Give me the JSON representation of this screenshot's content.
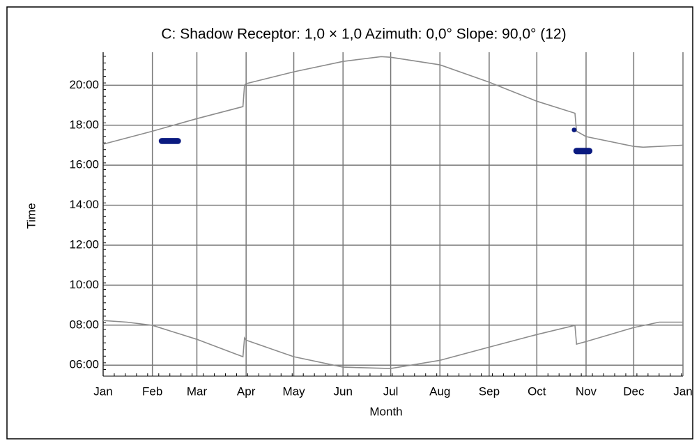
{
  "chart_data": {
    "type": "line",
    "title": "C: Shadow Receptor: 1,0 × 1,0  Azimuth: 0,0°  Slope: 90,0° (12)",
    "x_label": "Month",
    "y_label": "Time",
    "xlim": [
      0,
      365
    ],
    "xticks": [
      {
        "value": 0,
        "label": "Jan"
      },
      {
        "value": 31,
        "label": "Feb"
      },
      {
        "value": 59,
        "label": "Mar"
      },
      {
        "value": 90,
        "label": "Apr"
      },
      {
        "value": 120,
        "label": "May"
      },
      {
        "value": 151,
        "label": "Jun"
      },
      {
        "value": 181,
        "label": "Jul"
      },
      {
        "value": 212,
        "label": "Aug"
      },
      {
        "value": 243,
        "label": "Sep"
      },
      {
        "value": 273,
        "label": "Oct"
      },
      {
        "value": 304,
        "label": "Nov"
      },
      {
        "value": 334,
        "label": "Dec"
      },
      {
        "value": 365,
        "label": "Jan"
      }
    ],
    "ylim": [
      5.45,
      21.65
    ],
    "yticks": [
      {
        "value": 6,
        "label": "06:00"
      },
      {
        "value": 8,
        "label": "08:00"
      },
      {
        "value": 10,
        "label": "10:00"
      },
      {
        "value": 12,
        "label": "12:00"
      },
      {
        "value": 14,
        "label": "14:00"
      },
      {
        "value": 16,
        "label": "16:00"
      },
      {
        "value": 18,
        "label": "18:00"
      },
      {
        "value": 20,
        "label": "20:00"
      }
    ],
    "grid": true,
    "series": [
      {
        "color": "#8c8c8c",
        "x": [
          0,
          31,
          59,
          88,
          89,
          90,
          120,
          151,
          175,
          181,
          212,
          243,
          273,
          297,
          298,
          304,
          334,
          340,
          365
        ],
        "values": [
          17.05,
          17.7,
          18.33,
          18.93,
          20.0,
          20.08,
          20.67,
          21.19,
          21.43,
          21.4,
          21.02,
          20.15,
          19.2,
          18.6,
          17.7,
          17.43,
          16.94,
          16.9,
          17.0
        ]
      },
      {
        "color": "#8c8c8c",
        "x": [
          0,
          15,
          31,
          59,
          88,
          89,
          90,
          120,
          151,
          181,
          212,
          243,
          273,
          297,
          298,
          304,
          334,
          350,
          365
        ],
        "values": [
          8.23,
          8.15,
          7.99,
          7.29,
          6.42,
          7.36,
          7.25,
          6.42,
          5.9,
          5.83,
          6.24,
          6.9,
          7.53,
          7.99,
          7.05,
          7.18,
          7.88,
          8.15,
          8.15
        ]
      }
    ],
    "shadow_color": "#0a1a80",
    "shadow_periods": [
      {
        "x": [
          35,
          49
        ],
        "y": [
          17.06,
          17.36
        ]
      },
      {
        "x": [
          295,
          298
        ],
        "y": [
          17.65,
          17.88
        ]
      },
      {
        "x": [
          296,
          308
        ],
        "y": [
          16.55,
          16.87
        ]
      }
    ]
  }
}
